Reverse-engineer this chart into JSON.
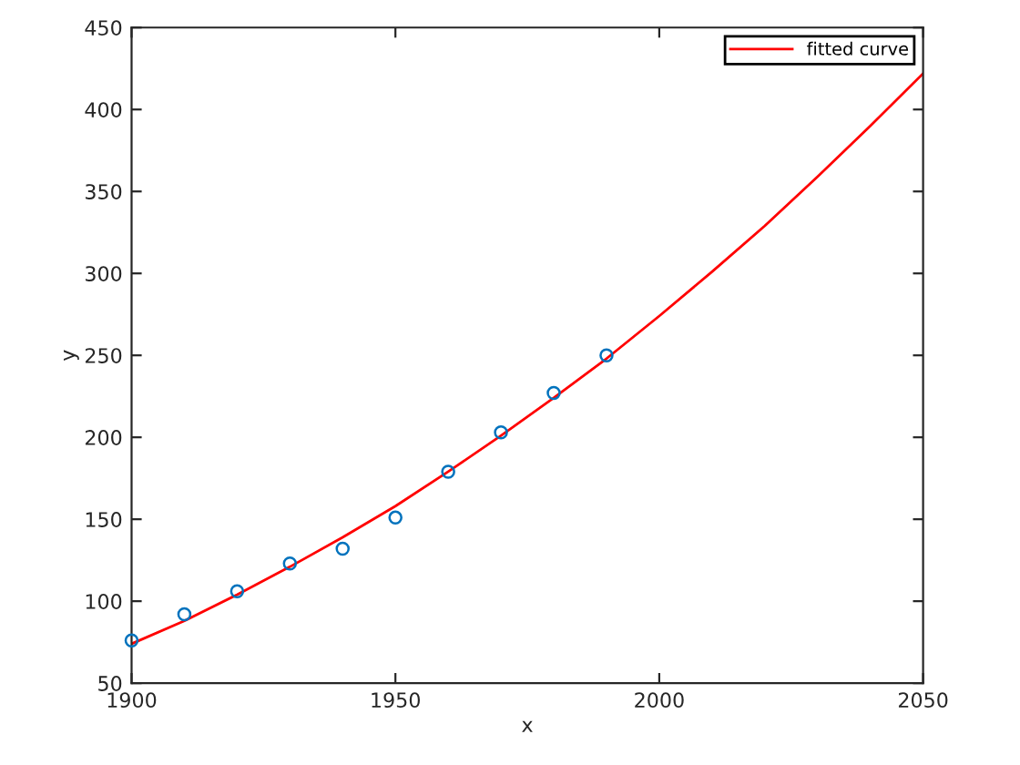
{
  "chart_data": {
    "type": "scatter",
    "xlabel": "x",
    "ylabel": "y",
    "xlim": [
      1900,
      2050
    ],
    "xticks": [
      1900,
      1950,
      2000,
      2050
    ],
    "ylim": [
      50,
      450
    ],
    "yticks": [
      50,
      100,
      150,
      200,
      250,
      300,
      350,
      400,
      450
    ],
    "grid": false,
    "legend": "top right",
    "series": [
      {
        "marker": "circle",
        "color": "#0072bd",
        "x": [
          1900,
          1910,
          1920,
          1930,
          1940,
          1950,
          1960,
          1970,
          1980,
          1990
        ],
        "values": [
          76,
          92,
          106,
          123,
          132,
          151,
          179,
          203,
          227,
          250
        ]
      },
      {
        "type": "line",
        "marker": "none",
        "name": "fitted curve",
        "color": "#ff0000",
        "x": [
          1900,
          1910,
          1920,
          1930,
          1940,
          1950,
          1960,
          1970,
          1980,
          1990,
          2000,
          2010,
          2020,
          2030,
          2040,
          2050
        ],
        "values": [
          74,
          88,
          104,
          121,
          139,
          158,
          179,
          201,
          224,
          248,
          274,
          301,
          329,
          359,
          390,
          422
        ]
      }
    ]
  }
}
